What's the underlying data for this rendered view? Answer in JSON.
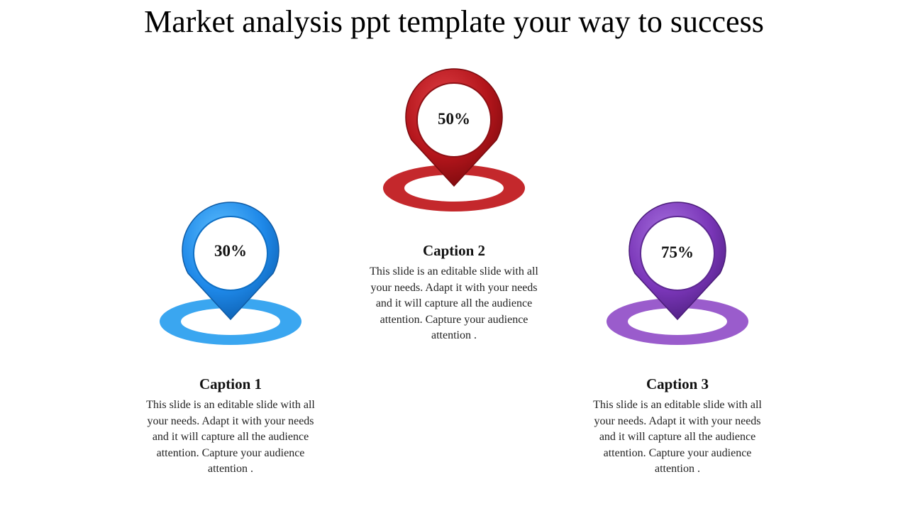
{
  "title": "Market analysis ppt template your way to success",
  "items": [
    {
      "percent": "30%",
      "caption": "Caption 1",
      "text": "This slide is an editable slide with all your needs. Adapt it with your needs and it will capture all the audience attention. Capture your audience attention .",
      "color": "#1e88e8",
      "ring_color": "#3aa6f0"
    },
    {
      "percent": "50%",
      "caption": "Caption 2",
      "text": "This slide is an editable slide with all your needs. Adapt it with your needs and it will capture all the audience attention. Capture your audience attention .",
      "color": "#b3151b",
      "ring_color": "#c4282c"
    },
    {
      "percent": "75%",
      "caption": "Caption 3",
      "text": "This slide is an editable slide with all your needs. Adapt it with your needs and it will capture all the audience attention. Capture your audience attention .",
      "color": "#7a36b8",
      "ring_color": "#9a5ccc"
    }
  ]
}
